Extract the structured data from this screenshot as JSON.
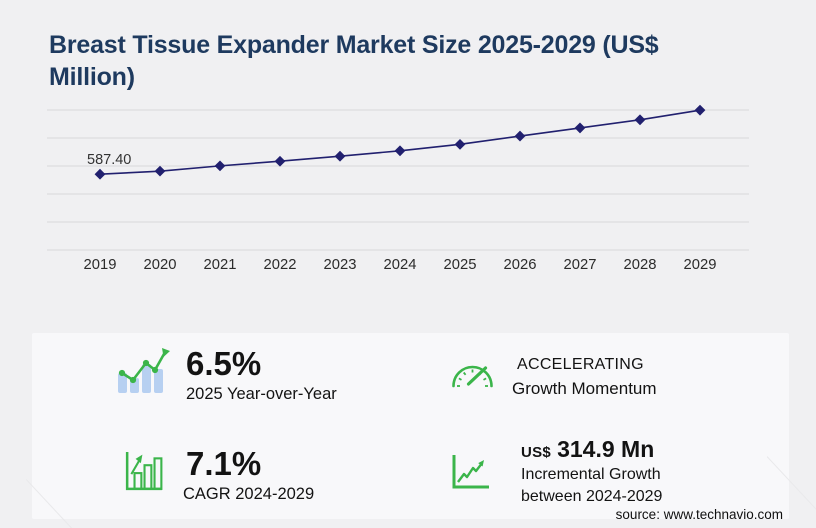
{
  "title": "Breast Tissue Expander Market Size 2025-2029 (US$ Million)",
  "source": "source: www.technavio.com",
  "colors": {
    "title_navy": "#1e3a5f",
    "line_navy": "#21206f",
    "grid_gray": "#d9d9db",
    "accent_green": "#3bb54a",
    "light_blue_bar": "#b7d0f1",
    "panel_bg": "#f8f8fa",
    "page_bg": "#f0f0f2"
  },
  "chart_data": {
    "type": "line",
    "title": "Breast Tissue Expander Market Size 2025-2029 (US$ Million)",
    "x": [
      2019,
      2020,
      2021,
      2022,
      2023,
      2024,
      2025,
      2026,
      2027,
      2028,
      2029
    ],
    "series": [
      {
        "name": "Market size (US$ Million)",
        "values": [
          587.4,
          611,
          652,
          688,
          727,
          768.8,
          818.8,
          883,
          946,
          1009,
          1083.7
        ]
      }
    ],
    "point_label": "587.40",
    "point_label_index": 0,
    "ylim": [
      0,
      1085
    ],
    "grid": "horizontal",
    "gridline_count": 6,
    "legend": "none",
    "line_color": "#21206f",
    "marker": "diamond"
  },
  "stats": [
    {
      "value": "6.5%",
      "label": "2025 Year-over-Year",
      "icon": "growth-bars-icon"
    },
    {
      "value": "ACCELERATING",
      "label": "Growth Momentum",
      "icon": "speedometer-icon"
    },
    {
      "value": "7.1%",
      "label": "CAGR 2024-2029",
      "icon": "bar-chart-frame-icon"
    },
    {
      "value_prefix": "US$",
      "value": "314.9 Mn",
      "label": "Incremental Growth between 2024-2029",
      "icon": "line-graph-axis-icon"
    }
  ]
}
